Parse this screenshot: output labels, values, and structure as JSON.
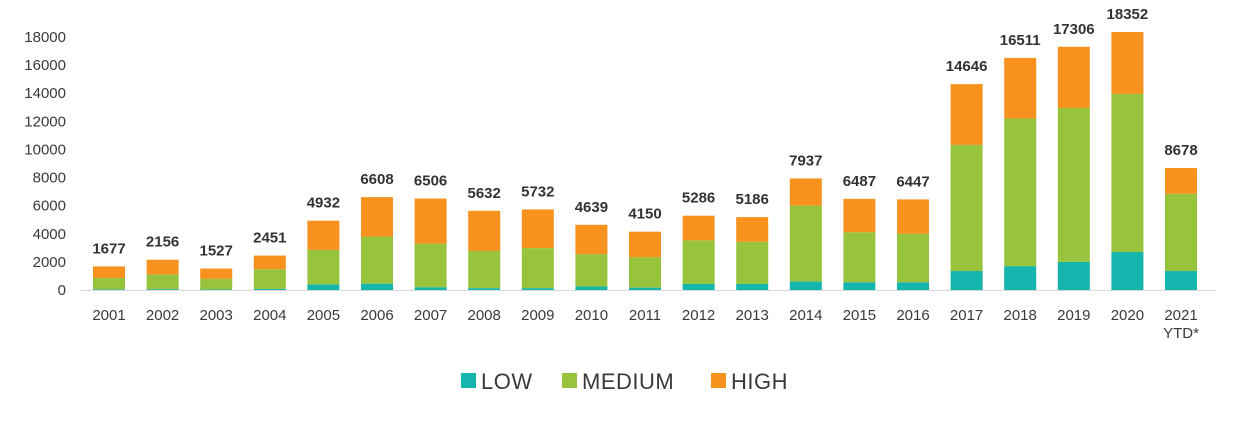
{
  "chart_data": {
    "type": "bar",
    "stacked": true,
    "title": "",
    "xlabel": "",
    "ylabel": "",
    "ylim": [
      0,
      18000
    ],
    "yticks": [
      0,
      2000,
      4000,
      6000,
      8000,
      10000,
      12000,
      14000,
      16000,
      18000
    ],
    "grid": false,
    "legend_position": "bottom-center",
    "categories": [
      "2001",
      "2002",
      "2003",
      "2004",
      "2005",
      "2006",
      "2007",
      "2008",
      "2009",
      "2010",
      "2011",
      "2012",
      "2013",
      "2014",
      "2015",
      "2016",
      "2017",
      "2018",
      "2019",
      "2020",
      "2021\nYTD*"
    ],
    "series": [
      {
        "name": "LOW",
        "color": "#13b5ad",
        "values": [
          50,
          60,
          40,
          80,
          400,
          450,
          200,
          130,
          130,
          250,
          170,
          430,
          430,
          600,
          550,
          550,
          1350,
          1700,
          2000,
          2700,
          1350
        ]
      },
      {
        "name": "MEDIUM",
        "color": "#97c43c",
        "values": [
          800,
          1050,
          750,
          1400,
          2450,
          3350,
          3100,
          2650,
          2850,
          2300,
          2160,
          3100,
          3000,
          5400,
          3560,
          3450,
          8980,
          10500,
          10950,
          11250,
          5500
        ]
      },
      {
        "name": "HIGH",
        "color": "#f7921e",
        "values": [
          827,
          1046,
          737,
          971,
          2082,
          2808,
          3206,
          2852,
          2752,
          2089,
          1820,
          1756,
          1756,
          1937,
          2377,
          2447,
          4316,
          4311,
          4356,
          4402,
          1828
        ]
      }
    ],
    "totals": [
      1677,
      2156,
      1527,
      2451,
      4932,
      6608,
      6506,
      5632,
      5732,
      4639,
      4150,
      5286,
      5186,
      7937,
      6487,
      6447,
      14646,
      16511,
      17306,
      18352,
      8678
    ]
  }
}
